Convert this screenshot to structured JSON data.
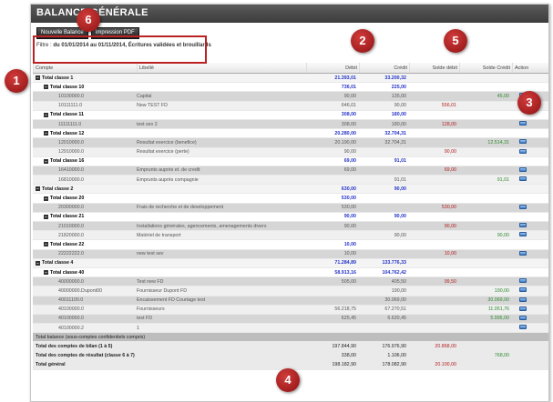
{
  "window": {
    "title": "BALANCE GÉNÉRALE"
  },
  "toolbar": {
    "new_balance_label": "Nouvelle Balance",
    "print_pdf_label": "Impression PDF"
  },
  "filter": {
    "label": "Filtre :",
    "value": "du 01/01/2014 au 01/11/2014, Écritures validées et brouillards"
  },
  "columns": {
    "account": "Compte",
    "label": "Libellé",
    "debit": "Débit",
    "credit": "Crédit",
    "balance_debit": "Solde débit",
    "balance_credit": "Solde Crédit",
    "action": "Action"
  },
  "markers": [
    "1",
    "2",
    "3",
    "4",
    "5",
    "6"
  ],
  "rows": [
    {
      "kind": "t1",
      "account": "Total classe 1",
      "label": "",
      "debit": "21.393,01",
      "credit": "33.200,32",
      "sd": "",
      "sc": ""
    },
    {
      "kind": "t2",
      "account": "Total classe 10",
      "label": "",
      "debit": "736,01",
      "credit": "225,00",
      "sd": "",
      "sc": ""
    },
    {
      "kind": "d",
      "account": "10100000.0",
      "label": "Capital",
      "debit": "90,00",
      "credit": "135,00",
      "sd": "",
      "sc": "45,00"
    },
    {
      "kind": "d",
      "account": "10111111.0",
      "label": "New TEST FD",
      "debit": "646,01",
      "credit": "90,00",
      "sd": "556,01",
      "sc": ""
    },
    {
      "kind": "t2",
      "account": "Total classe 11",
      "label": "",
      "debit": "308,00",
      "credit": "180,00",
      "sd": "",
      "sc": ""
    },
    {
      "kind": "d",
      "account": "11111111.0",
      "label": "test sev 2",
      "debit": "308,00",
      "credit": "180,00",
      "sd": "128,00",
      "sc": ""
    },
    {
      "kind": "t2",
      "account": "Total classe 12",
      "label": "",
      "debit": "20.280,00",
      "credit": "32.704,31",
      "sd": "",
      "sc": ""
    },
    {
      "kind": "d",
      "account": "12010000.0",
      "label": "Resultat exercice (benefice)",
      "debit": "20.190,00",
      "credit": "32.704,31",
      "sd": "",
      "sc": "12.514,31"
    },
    {
      "kind": "d",
      "account": "12910000.0",
      "label": "Resultat exercice (perte)",
      "debit": "90,00",
      "credit": "",
      "sd": "90,00",
      "sc": ""
    },
    {
      "kind": "t2",
      "account": "Total classe 16",
      "label": "",
      "debit": "69,00",
      "credit": "91,01",
      "sd": "",
      "sc": ""
    },
    {
      "kind": "d",
      "account": "16410000.0",
      "label": "Emprunts auprès et. de credit",
      "debit": "69,00",
      "credit": "",
      "sd": "69,00",
      "sc": ""
    },
    {
      "kind": "d",
      "account": "16810000.0",
      "label": "Emprunts auprès compagnie",
      "debit": "",
      "credit": "91,01",
      "sd": "",
      "sc": "91,01"
    },
    {
      "kind": "t1",
      "account": "Total classe 2",
      "label": "",
      "debit": "630,00",
      "credit": "90,00",
      "sd": "",
      "sc": ""
    },
    {
      "kind": "t2",
      "account": "Total classe 20",
      "label": "",
      "debit": "530,00",
      "credit": "",
      "sd": "",
      "sc": ""
    },
    {
      "kind": "d",
      "account": "20300000.0",
      "label": "Frais de recherche et de developpement",
      "debit": "530,00",
      "credit": "",
      "sd": "530,00",
      "sc": ""
    },
    {
      "kind": "t2",
      "account": "Total classe 21",
      "label": "",
      "debit": "90,00",
      "credit": "90,00",
      "sd": "",
      "sc": ""
    },
    {
      "kind": "d",
      "account": "21010000.0",
      "label": "Installations générales, agencements, amenagements divers",
      "debit": "90,00",
      "credit": "",
      "sd": "90,00",
      "sc": ""
    },
    {
      "kind": "d",
      "account": "21820000.0",
      "label": "Matériel de transport",
      "debit": "",
      "credit": "90,00",
      "sd": "",
      "sc": "90,00"
    },
    {
      "kind": "t2",
      "account": "Total classe 22",
      "label": "",
      "debit": "10,00",
      "credit": "",
      "sd": "",
      "sc": ""
    },
    {
      "kind": "d",
      "account": "22222222.0",
      "label": "new test sev",
      "debit": "10,00",
      "credit": "",
      "sd": "10,00",
      "sc": ""
    },
    {
      "kind": "t1",
      "account": "Total classe 4",
      "label": "",
      "debit": "71.284,89",
      "credit": "133.776,33",
      "sd": "",
      "sc": ""
    },
    {
      "kind": "t2",
      "account": "Total classe 40",
      "label": "",
      "debit": "58.913,16",
      "credit": "104.762,42",
      "sd": "",
      "sc": ""
    },
    {
      "kind": "d",
      "account": "40000000.0",
      "label": "Test new FD",
      "debit": "505,00",
      "credit": "405,50",
      "sd": "99,50",
      "sc": ""
    },
    {
      "kind": "d",
      "account": "40000000.Dupont00",
      "label": "Fournisseur Dupont FD",
      "debit": "",
      "credit": "190,00",
      "sd": "",
      "sc": "190,00"
    },
    {
      "kind": "d",
      "account": "40011100.0",
      "label": "Encaissement FD Courtage test",
      "debit": "",
      "credit": "30.069,00",
      "sd": "",
      "sc": "30.069,00"
    },
    {
      "kind": "d",
      "account": "40100000.0",
      "label": "Fournisseurs",
      "debit": "56.218,75",
      "credit": "67.270,51",
      "sd": "",
      "sc": "11.051,76"
    },
    {
      "kind": "d",
      "account": "40100000.0",
      "label": "test FD",
      "debit": "625,45",
      "credit": "6.620,45",
      "sd": "",
      "sc": "5.995,00"
    },
    {
      "kind": "d",
      "account": "40100000.2",
      "label": "1",
      "debit": "",
      "credit": "",
      "sd": "",
      "sc": ""
    }
  ],
  "totals": [
    {
      "label": "Total balance (sous-comptes confidentiels compris)",
      "debit": "",
      "credit": "",
      "sd": "",
      "sc": ""
    },
    {
      "label": "Total des comptes de bilan (1 à 5)",
      "debit": "197.844,90",
      "credit": "176.976,90",
      "sd": "20.868,00",
      "sc": ""
    },
    {
      "label": "Total des comptes de résultat (classe 6 à 7)",
      "debit": "338,00",
      "credit": "1.106,00",
      "sd": "",
      "sc": "768,00"
    },
    {
      "label": "Total général",
      "debit": "198.182,90",
      "credit": "178.082,90",
      "sd": "20.100,00",
      "sc": ""
    }
  ]
}
